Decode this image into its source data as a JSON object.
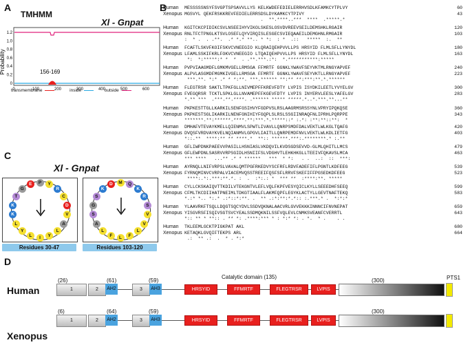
{
  "panels": {
    "a": "A",
    "b": "B",
    "c": "C",
    "d": "D"
  },
  "tmhmm": {
    "title": "TMHMM",
    "subtitle": "Xl - Gnpat",
    "ylabel": "Probability",
    "yticks": [
      "1.2",
      "1.0",
      "0.8",
      "0.6",
      "0.4",
      "0.2",
      "0"
    ],
    "xticks": [
      "0",
      "100",
      "200",
      "300",
      "400",
      "500",
      "600"
    ],
    "annotation": "156-169",
    "legend": [
      "transmembrane",
      "inside",
      "outside"
    ],
    "colors": {
      "transmembrane": "#e8201e",
      "inside": "#27a9e1",
      "outside": "#e0207a"
    }
  },
  "alignment": {
    "blocks": [
      {
        "human": "MESSSSSNSYFSVGPTSPSAVVLLYS KELKWDEFEDIELERRHVSDLKFAMKCYTPLVY",
        "xenopus": "MGSVYL QEKFRSKKREVFEDIELERRSDSLDYKAMKCYTPIVY",
        "cons": "                            .  **.****..***  ****  .*****.*",
        "hn": "60",
        "xn": "43"
      },
      {
        "human": "KGITCKCPIDIKCSVLNSEEIHYVIKOLSKESLOSVDVREEVSEILDEMSHKLRGAIR",
        "xenopus": "RNLTFCTPNGLKTSVLOSEFLQYVIRQISLESGECSVIEQAAEILDEMGHNLRMGAIR",
        "cons": ":  * .  . .**.  .* *.* **.. * *:  : *  .::   *****  :.  **",
        "hn": "120",
        "xn": "103"
      },
      {
        "human": "FCAFTLSKVFKOIFSKVCVNEEGIO KLQRAIQEHPVVLLPS HRSYID FLMLSFLLYNYDL",
        "xenopus": "LFAMLSSKIFKRLFOKVCVNEEGIO LTQAIQEHPVVLLPS HRSYID FLMLSFLLYNYDL",
        "cons": " *:  *:*****:* *  *  . .**.***.:*:  *.***********:***** ",
        "hn": "180",
        "xn": "163"
      },
      {
        "human": "PVPVIAAGMDFLGMKMVGELLRMSGA FFMRTF GGNKLYWAVFSEYVKTMLRNGYAPVEF",
        "xenopus": "ALPVLASGMDFMGMKIVGELLRMSGA FFMRTF GGNKLYWAVFSEYVKTLLRNGYAPVEF",
        "cons": " ***.**. *:* .* * *:**. ***.****** **:** **:***:**.*.******",
        "hn": "240",
        "xn": "223"
      },
      {
        "human": "FLEGTRSR SAKTLTPKFGLLNIVMEPFFKREVFDTY LVPIS ISYDKILEETLYVYELGV",
        "xenopus": "FVEGQRSR TCKTLSPKLGLLNVAMEPFFKGEVFDTY LVPIS INYERVLEESLYAFELGV",
        "cons": "*.** ***  .***.**.****. .****** ***** *****.*..*.***.**...**",
        "hn": "300",
        "xn": "283"
      },
      {
        "human": "PKPKESTTGLLKARKILSENFGSIHVYFGDPVSLRSLAAGRMSRSSYNLVPRYIPQKQSE",
        "xenopus": "PKPKESTSGLIKARKILNENFGNIHIYFGQPLSLRSLSSGIINRAQFNLIPRHLPQRPPE",
        "cons": "*******.**:******.****.**:***.*.*****::* :.*: :**:**::**:  *",
        "hn": "360",
        "xn": "343"
      },
      {
        "human": "DMHAFVTEVAYKMELLQIENMVLSPWTLIVAVLLQNRPSMDFDALVEKTLWLKGLTQAFG",
        "xenopus": "DVQSFVRDVAYKVELNQIANMVLGPGVLIAITLLQNRPEMDFNVLVEKTLWLKDLIETFG",
        "cons": "*::.**  ****:** ** ****.*  **:: ******.***:.********.* :.**",
        "hn": "420",
        "xn": "403"
      },
      {
        "human": "GFLIWPDNKPAEEVVPASILLHSNIASLVKDQVILKVDSGDSEVVD-GLMLQHITLLMCS",
        "xenopus": "GFLEWPDNLSASRVVRPSGIDLHSNIIFSLVDGHVTLEHKHKGLLTEEIVFQKAVSLMCA",
        "cons": "*** ****   ...** .* * ******   ***  * *:   . .  ..:  ::  ***:",
        "hn": "479",
        "xn": "463"
      },
      {
        "human": "AYRNQLLNIFVRPSLVAVALQMTPGFRKEDVYSCFRFLRDVFADEFIFLPGNTLKDFEEG",
        "xenopus": "FYRNQMINVCVRPALVIACEMVQSSTREEIFQSFSFLRRVFSKEFIFFPGSEDKDFEEG",
        "cons": " ****:.*:.***:**.*. :  .  :*:.: *  *** **  :****:**. *****",
        "hn": "539",
        "xn": "523"
      },
      {
        "human": "CYLLCKSKAIQVTTKDILVTEKGNTVLEFLVQLFKPFVESYQICLKYLLSEEEDHFSEEQ",
        "xenopus": "CFMLTKCDIIHATPNEIMLTDKGTIAALFLAKMFQPFLEGYKLACTYLLGEVTNAFTEKQ",
        "cons": "*.:* *.. *:.* .:*::*:**. .  ** .:*:**:*.*:: :.***.* .  *:*:*",
        "hn": "599",
        "xn": "583"
      },
      {
        "human": "YLAAVRKFTSQLLDQGTSQCYDVLSSDVQKNALAACVRLGVVEKKKINNNCIFNVNEPAT",
        "xenopus": "YISGVRSFISQIVSGTSVCYEALSSDMQKNILSSFVQLEVLCNMKSVEANFCVERRTL",
        "cons": "*:: ** * **:: . ** *: .****:*** * : *:* *: . *.  * .    . .",
        "hn": "659",
        "xn": "643"
      },
      {
        "human": "TKLEEMLGCKTPIGKPAT AKL",
        "xenopus": "KETAQKLGVQIFTEKPS ARL",
        "cons": " .:  ** .:  .  * . *:*",
        "hn": "680",
        "xn": "664"
      }
    ]
  },
  "wheels": {
    "title": "Xl - Gnpat",
    "label1": "Residues 30-47",
    "label2": "Residues 103-120",
    "wheel1": [
      "P",
      "Y",
      "R",
      "C",
      "D",
      "V",
      "A",
      "L",
      "Y",
      "I",
      "L",
      "Y",
      "L",
      "K",
      "K",
      "T",
      "G",
      "E"
    ],
    "wheel2": [
      "M",
      "Q",
      "K",
      "R",
      "S",
      "V",
      "V",
      "L",
      "F",
      "L",
      "F",
      "L",
      "A",
      "S",
      "G",
      "S",
      "K",
      "D"
    ]
  },
  "domains": {
    "catalytic": "Catalytic domain (135)",
    "pts": "PTS1",
    "human": {
      "label": "Human",
      "counts": [
        "(26)",
        "(61)",
        "(59)",
        "(300)"
      ]
    },
    "xenopus": {
      "label": "Xenopus",
      "counts": [
        "(6)",
        "(64)",
        "(59)",
        "(300)"
      ]
    },
    "boxes": [
      "1",
      "2",
      "AH2",
      "3",
      "AH3"
    ],
    "motifs": [
      "HRSYID",
      "FFMRTF",
      "FLEGTRSR",
      "LVPIS"
    ]
  },
  "species": {
    "human": "Human",
    "xenopus": "Xenopus"
  }
}
